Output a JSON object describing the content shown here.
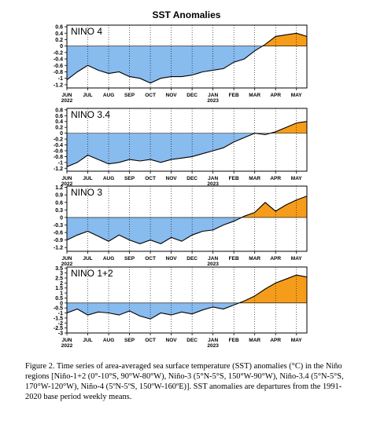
{
  "figure": {
    "title": "SST Anomalies",
    "caption": "Figure 2. Time series of area-averaged sea surface temperature (SST) anomalies (°C) in the Niño regions [Niño-1+2 (0°-10°S, 90°W-80°W), Niño-3 (5°N-5°S, 150°W-90°W), Niño-3.4 (5°N-5°S, 170°W-120°W), Niño-4 (5ºN-5ºS, 150ºW-160ºE)]. SST anomalies are departures from the 1991-2020 base period weekly means.",
    "colors": {
      "negative": "#88bbee",
      "positive": "#f59d1a",
      "line": "#000000"
    }
  },
  "chart_data": [
    {
      "type": "area",
      "panel_label": "NINO 4",
      "x_labels": [
        "JUN",
        "JUL",
        "AUG",
        "SEP",
        "OCT",
        "NOV",
        "DEC",
        "JAN",
        "FEB",
        "MAR",
        "APR",
        "MAY"
      ],
      "year_labels": [
        {
          "month": "JUN",
          "text": "2022"
        },
        {
          "month": "JAN",
          "text": "2023"
        }
      ],
      "yticks": [
        "0.6",
        "0.4",
        "0.2",
        "0",
        "-0.2",
        "-0.4",
        "-0.6",
        "-0.8",
        "-1",
        "-1.2"
      ],
      "ylim": [
        -1.3,
        0.65
      ],
      "x_range_months": [
        0,
        11.5
      ],
      "x": [
        0.0,
        0.5,
        1.0,
        1.5,
        2.0,
        2.5,
        3.0,
        3.5,
        4.0,
        4.5,
        5.0,
        5.5,
        6.0,
        6.5,
        7.0,
        7.5,
        8.0,
        8.5,
        9.0,
        9.5,
        10.0,
        10.5,
        11.0,
        11.5
      ],
      "values": [
        -1.05,
        -0.8,
        -0.6,
        -0.75,
        -0.85,
        -0.8,
        -0.95,
        -1.0,
        -1.15,
        -1.0,
        -0.95,
        -0.95,
        -0.9,
        -0.8,
        -0.75,
        -0.7,
        -0.5,
        -0.4,
        -0.15,
        0.05,
        0.3,
        0.35,
        0.4,
        0.3
      ]
    },
    {
      "type": "area",
      "panel_label": "NINO 3.4",
      "x_labels": [
        "JUN",
        "JUL",
        "AUG",
        "SEP",
        "OCT",
        "NOV",
        "DEC",
        "JAN",
        "FEB",
        "MAR",
        "APR",
        "MAY"
      ],
      "year_labels": [
        {
          "month": "JUN",
          "text": "2022"
        },
        {
          "month": "JAN",
          "text": "2023"
        }
      ],
      "yticks": [
        "0.8",
        "0.6",
        "0.4",
        "0.2",
        "0",
        "-0.2",
        "-0.4",
        "-0.6",
        "-0.8",
        "-1",
        "-1.2"
      ],
      "ylim": [
        -1.3,
        0.85
      ],
      "x_range_months": [
        0,
        11.5
      ],
      "x": [
        0.0,
        0.5,
        1.0,
        1.5,
        2.0,
        2.5,
        3.0,
        3.5,
        4.0,
        4.5,
        5.0,
        5.5,
        6.0,
        6.5,
        7.0,
        7.5,
        8.0,
        8.5,
        9.0,
        9.5,
        10.0,
        10.5,
        11.0,
        11.5
      ],
      "values": [
        -1.15,
        -1.0,
        -0.75,
        -0.9,
        -1.05,
        -1.0,
        -0.9,
        -0.95,
        -0.9,
        -1.0,
        -0.9,
        -0.85,
        -0.8,
        -0.7,
        -0.6,
        -0.5,
        -0.3,
        -0.15,
        0.0,
        -0.05,
        0.05,
        0.2,
        0.35,
        0.4
      ]
    },
    {
      "type": "area",
      "panel_label": "NINO 3",
      "x_labels": [
        "JUN",
        "JUL",
        "AUG",
        "SEP",
        "OCT",
        "NOV",
        "DEC",
        "JAN",
        "FEB",
        "MAR",
        "APR",
        "MAY"
      ],
      "year_labels": [
        {
          "month": "JUN",
          "text": "2022"
        },
        {
          "month": "JAN",
          "text": "2023"
        }
      ],
      "yticks": [
        "1.2",
        "0.9",
        "0.6",
        "0.3",
        "0",
        "-0.3",
        "-0.6",
        "-0.9",
        "-1.2"
      ],
      "ylim": [
        -1.35,
        1.25
      ],
      "x_range_months": [
        0,
        11.5
      ],
      "x": [
        0.0,
        0.5,
        1.0,
        1.5,
        2.0,
        2.5,
        3.0,
        3.5,
        4.0,
        4.5,
        5.0,
        5.5,
        6.0,
        6.5,
        7.0,
        7.5,
        8.0,
        8.5,
        9.0,
        9.5,
        10.0,
        10.5,
        11.0,
        11.5
      ],
      "values": [
        -0.9,
        -0.7,
        -0.55,
        -0.75,
        -0.95,
        -0.7,
        -0.9,
        -1.05,
        -0.9,
        -1.05,
        -0.8,
        -0.95,
        -0.7,
        -0.55,
        -0.5,
        -0.3,
        -0.15,
        0.05,
        0.2,
        0.6,
        0.25,
        0.5,
        0.7,
        0.85
      ]
    },
    {
      "type": "area",
      "panel_label": "NINO 1+2",
      "x_labels": [
        "JUN",
        "JUL",
        "AUG",
        "SEP",
        "OCT",
        "NOV",
        "DEC",
        "JAN",
        "FEB",
        "MAR",
        "APR",
        "MAY"
      ],
      "year_labels": [
        {
          "month": "JUN",
          "text": "2022"
        },
        {
          "month": "JAN",
          "text": "2023"
        }
      ],
      "yticks": [
        "3.5",
        "3",
        "2.5",
        "2",
        "1.5",
        "1",
        "0.5",
        "0",
        "-0.5",
        "-1",
        "-1.5",
        "-2",
        "-2.5",
        "-3"
      ],
      "ylim": [
        -3.0,
        3.6
      ],
      "x_range_months": [
        0,
        11.5
      ],
      "x": [
        0.0,
        0.5,
        1.0,
        1.5,
        2.0,
        2.5,
        3.0,
        3.5,
        4.0,
        4.5,
        5.0,
        5.5,
        6.0,
        6.5,
        7.0,
        7.5,
        8.0,
        8.5,
        9.0,
        9.5,
        10.0,
        10.5,
        11.0,
        11.5
      ],
      "values": [
        -1.0,
        -0.6,
        -1.2,
        -0.9,
        -1.0,
        -1.2,
        -0.8,
        -1.3,
        -1.6,
        -1.0,
        -1.2,
        -0.9,
        -1.1,
        -0.7,
        -0.4,
        -0.6,
        -0.2,
        0.2,
        0.7,
        1.4,
        2.0,
        2.4,
        2.8,
        2.6
      ]
    }
  ]
}
